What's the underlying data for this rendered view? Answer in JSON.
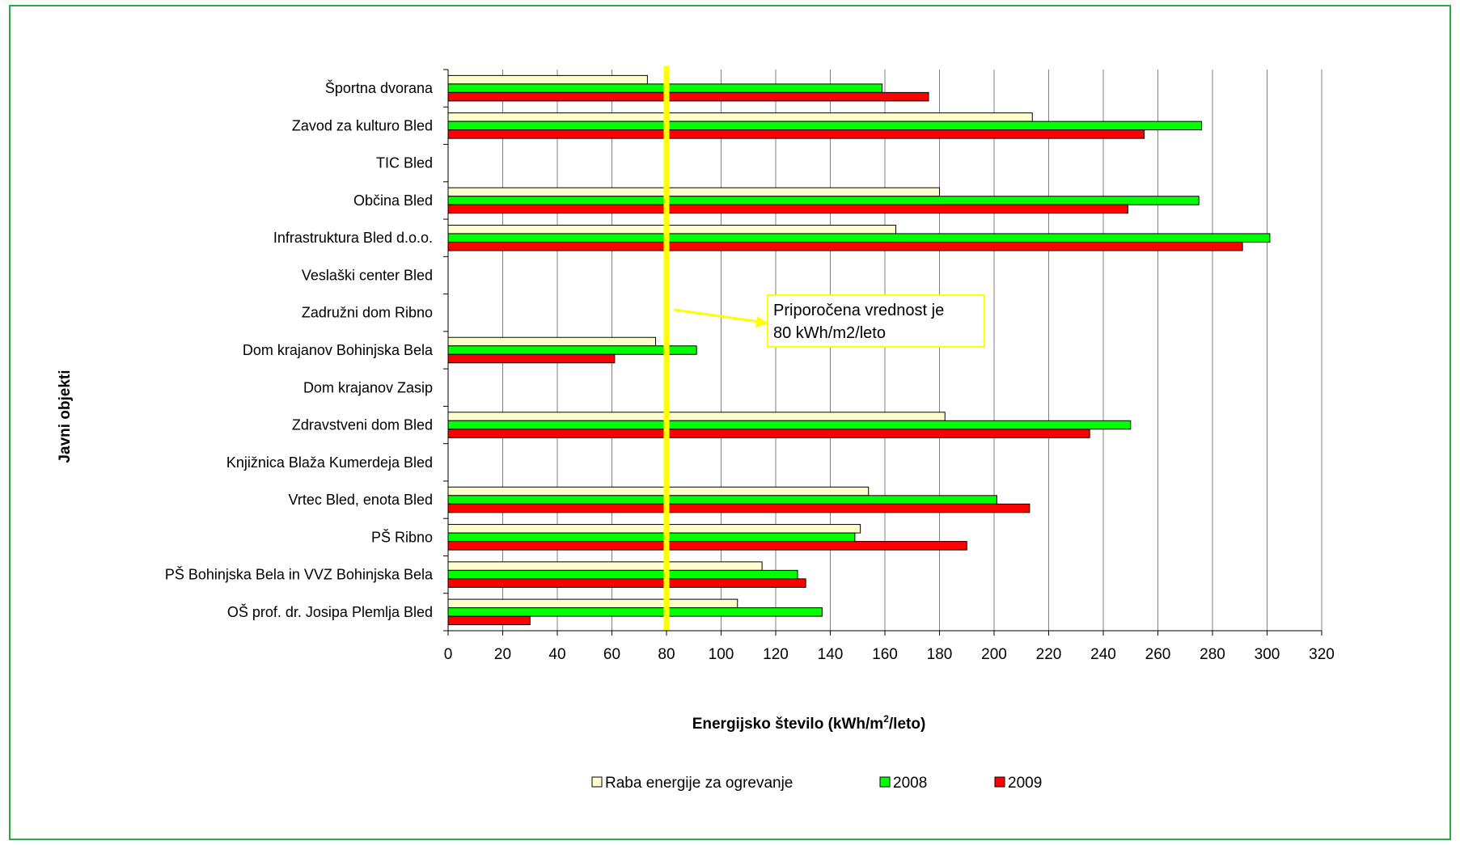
{
  "chart_data": {
    "type": "bar",
    "orientation": "horizontal",
    "xlabel": "Energijsko število (kWh/m",
    "xlabel_sup": "2",
    "xlabel_end": "/leto)",
    "ylabel": "Javni objekti",
    "xlim": [
      0,
      320
    ],
    "x_ticks": [
      0,
      20,
      40,
      60,
      80,
      100,
      120,
      140,
      160,
      180,
      200,
      220,
      240,
      260,
      280,
      300,
      320
    ],
    "grid": "vertical",
    "legend_position": "bottom",
    "categories": [
      "Športna dvorana",
      "Zavod za kulturo Bled",
      "TIC Bled",
      "Občina Bled",
      "Infrastruktura Bled d.o.o.",
      "Veslaški center Bled",
      "Zadružni dom Ribno",
      "Dom krajanov Bohinjska Bela",
      "Dom krajanov Zasip",
      "Zdravstveni dom Bled",
      "Knjižnica Blaža Kumerdeja Bled",
      "Vrtec Bled, enota Bled",
      "PŠ Ribno",
      "PŠ Bohinjska Bela in VVZ Bohinjska Bela",
      "OŠ prof. dr. Josipa Plemlja Bled"
    ],
    "series": [
      {
        "name": "Raba energije za ogrevanje",
        "color": "#ffffcc",
        "values": [
          73,
          214,
          null,
          180,
          164,
          null,
          null,
          76,
          null,
          182,
          null,
          154,
          151,
          115,
          106
        ]
      },
      {
        "name": "2008",
        "color": "#00ff00",
        "values": [
          159,
          276,
          null,
          275,
          301,
          null,
          null,
          91,
          null,
          250,
          null,
          201,
          149,
          128,
          137
        ]
      },
      {
        "name": "2009",
        "color": "#ff0000",
        "values": [
          176,
          255,
          null,
          249,
          291,
          null,
          null,
          61,
          null,
          235,
          null,
          213,
          190,
          131,
          30
        ]
      }
    ],
    "reference_line": {
      "value": 80,
      "color": "#ffff00"
    },
    "annotation": {
      "line1": "Priporočena vrednost je",
      "line2": "80 kWh/m2/leto",
      "border_color": "#ffff00",
      "arrow_color": "#ffff00"
    }
  }
}
